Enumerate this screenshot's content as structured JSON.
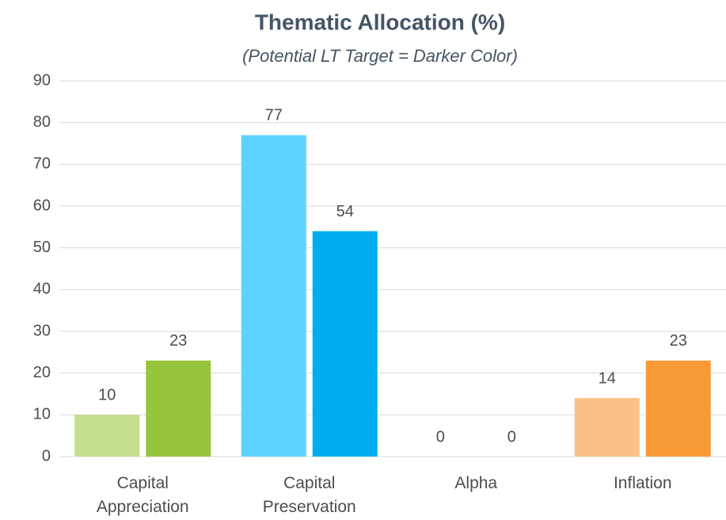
{
  "chart_data": {
    "type": "bar",
    "title": "Thematic Allocation (%)",
    "subtitle": "(Potential LT Target = Darker Color)",
    "categories": [
      "Capital Appreciation",
      "Capital Preservation",
      "Alpha",
      "Inflation"
    ],
    "series": [
      {
        "values": [
          10,
          77,
          0,
          14
        ],
        "colors": [
          "#c3de8c",
          "#5dd3ff",
          "#b9a5d6",
          "#fbc086"
        ]
      },
      {
        "values": [
          23,
          54,
          0,
          23
        ],
        "colors": [
          "#97c43d",
          "#00aeef",
          "#7e5eb0",
          "#f79a36"
        ]
      }
    ],
    "ylim": [
      0,
      90
    ],
    "yticks": [
      0,
      10,
      20,
      30,
      40,
      50,
      60,
      70,
      80,
      90
    ],
    "grid": true
  }
}
